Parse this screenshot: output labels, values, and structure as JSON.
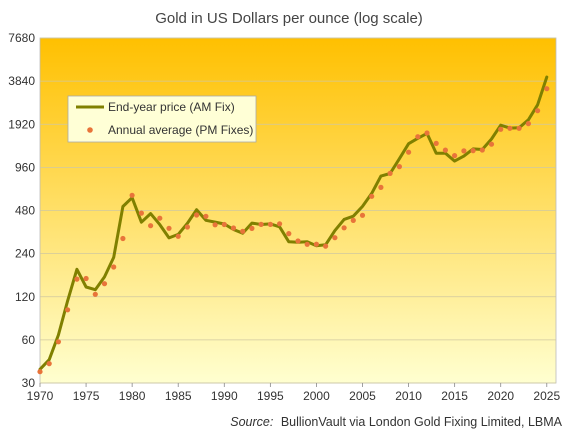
{
  "chart_data": {
    "type": "line",
    "title": "Gold in US Dollars per ounce (log scale)",
    "xlabel": "",
    "ylabel": "",
    "y_scale": "log",
    "xlim": [
      1970,
      2026
    ],
    "ylim": [
      30,
      7680
    ],
    "x_ticks": [
      1970,
      1975,
      1980,
      1985,
      1990,
      1995,
      2000,
      2005,
      2010,
      2015,
      2020,
      2025
    ],
    "y_ticks": [
      30,
      60,
      120,
      240,
      480,
      960,
      1920,
      3840,
      7680
    ],
    "grid": "horizontal",
    "legend_position": "upper-left",
    "background_gradient": [
      "#ffc000",
      "#ffffd0"
    ],
    "source_prefix": "Source:",
    "source_text": "BullionVault via London Gold Fixing Limited, LBMA",
    "series": [
      {
        "name": "End-year price (AM Fix)",
        "style": "line",
        "color": "#808000",
        "x": [
          1970,
          1971,
          1972,
          1973,
          1974,
          1975,
          1976,
          1977,
          1978,
          1979,
          1980,
          1981,
          1982,
          1983,
          1984,
          1985,
          1986,
          1987,
          1988,
          1989,
          1990,
          1991,
          1992,
          1993,
          1994,
          1995,
          1996,
          1997,
          1998,
          1999,
          2000,
          2001,
          2002,
          2003,
          2004,
          2005,
          2006,
          2007,
          2008,
          2009,
          2010,
          2011,
          2012,
          2013,
          2014,
          2015,
          2016,
          2017,
          2018,
          2019,
          2020,
          2021,
          2022,
          2023,
          2024,
          2025
        ],
        "values": [
          37.4,
          43.6,
          64.9,
          112.3,
          186.5,
          140.3,
          134.5,
          165.0,
          226.0,
          512.0,
          589.5,
          397.5,
          456.9,
          382.4,
          309.0,
          326.8,
          390.9,
          486.5,
          410.3,
          398.6,
          386.2,
          353.4,
          333.3,
          391.8,
          383.3,
          387.0,
          369.3,
          290.2,
          287.8,
          290.3,
          272.7,
          276.5,
          347.5,
          416.3,
          438.0,
          513.0,
          632.0,
          833.8,
          869.8,
          1104.0,
          1405.5,
          1531.0,
          1657.5,
          1204.5,
          1206.0,
          1062.3,
          1151.0,
          1291.0,
          1279.0,
          1515.0,
          1891.1,
          1805.9,
          1813.8,
          2062.4,
          2624.5,
          4100.0
        ]
      },
      {
        "name": "Annual average (PM Fixes)",
        "style": "markers",
        "color": "#e8743a",
        "x": [
          1970,
          1971,
          1972,
          1973,
          1974,
          1975,
          1976,
          1977,
          1978,
          1979,
          1980,
          1981,
          1982,
          1983,
          1984,
          1985,
          1986,
          1987,
          1988,
          1989,
          1990,
          1991,
          1992,
          1993,
          1994,
          1995,
          1996,
          1997,
          1998,
          1999,
          2000,
          2001,
          2002,
          2003,
          2004,
          2005,
          2006,
          2007,
          2008,
          2009,
          2010,
          2011,
          2012,
          2013,
          2014,
          2015,
          2016,
          2017,
          2018,
          2019,
          2020,
          2021,
          2022,
          2023,
          2024,
          2025
        ],
        "values": [
          36.0,
          41.0,
          58.2,
          97.3,
          159.3,
          161.0,
          124.8,
          148.0,
          193.5,
          306.0,
          612.6,
          460.0,
          375.9,
          424.0,
          360.7,
          317.3,
          368.2,
          446.5,
          437.0,
          381.4,
          383.5,
          362.1,
          343.8,
          359.8,
          384.0,
          384.2,
          387.8,
          331.0,
          294.2,
          278.8,
          279.1,
          271.0,
          310.0,
          363.3,
          409.2,
          444.7,
          603.5,
          695.4,
          872.0,
          972.4,
          1224.5,
          1571.5,
          1669.0,
          1411.2,
          1266.4,
          1160.1,
          1250.7,
          1257.1,
          1268.5,
          1392.6,
          1770.0,
          1798.6,
          1800.1,
          1940.0,
          2386.2,
          3400.0
        ]
      }
    ]
  }
}
